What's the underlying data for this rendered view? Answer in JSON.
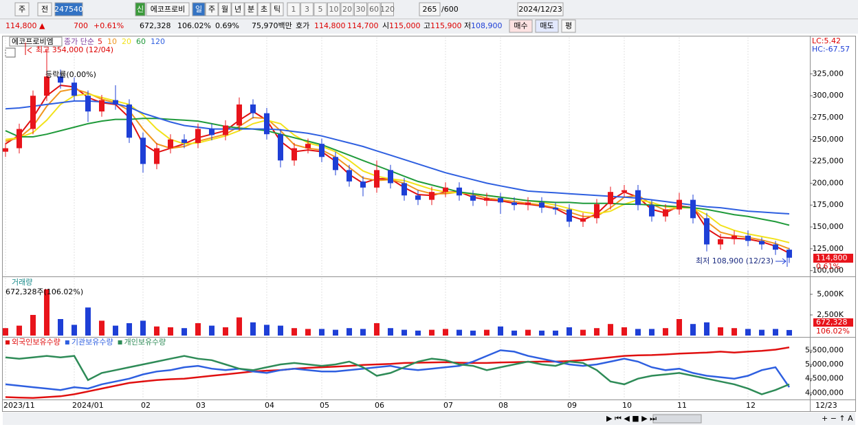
{
  "toolbar": {
    "period": "주",
    "compare": "전",
    "code": "247540",
    "badge": "신",
    "name": "에코프로비",
    "intervals": [
      "일",
      "주",
      "월",
      "년",
      "분",
      "초",
      "틱"
    ],
    "selected": 0,
    "minutes": [
      "1",
      "3",
      "5",
      "10",
      "20",
      "30",
      "60",
      "120"
    ],
    "count": "265",
    "max_count": "/600",
    "date": "2024/12/23"
  },
  "quote": {
    "price": "114,800 ▲",
    "change": "700",
    "change_rate": "+0.61%",
    "volume": "672,328",
    "volume_rate": "106.02%",
    "turnover": "0.69%",
    "amount": "75,970백만",
    "bid_ask_label": "호가",
    "ask": "114,800",
    "bid": "114,700",
    "open_label": "시",
    "open": "115,000",
    "high_label": "고",
    "high": "115,900",
    "low_label": "저",
    "low": "108,900",
    "buy": "매수",
    "sell": "매도",
    "avg": "평"
  },
  "chart_data": [
    {
      "type": "candlestick",
      "title": "에코프로비엠",
      "ma_label": "종가 단순",
      "categories": [
        "2023/11",
        null,
        null,
        null,
        null,
        "2024/01",
        null,
        null,
        null,
        null,
        "02",
        null,
        null,
        null,
        "03",
        null,
        null,
        null,
        null,
        "04",
        null,
        null,
        null,
        "05",
        null,
        null,
        null,
        "06",
        null,
        null,
        null,
        null,
        "07",
        null,
        null,
        null,
        "08",
        null,
        null,
        null,
        null,
        "09",
        null,
        null,
        null,
        "10",
        null,
        null,
        null,
        "11",
        null,
        null,
        null,
        null,
        "12",
        null,
        null,
        null
      ],
      "open": [
        236000,
        240000,
        262000,
        300000,
        322000,
        315000,
        300000,
        282000,
        295000,
        290000,
        252000,
        222000,
        240000,
        250000,
        246000,
        262000,
        255000,
        266000,
        290000,
        280000,
        256000,
        226000,
        240000,
        245000,
        230000,
        215000,
        202000,
        195000,
        215000,
        200000,
        186000,
        181000,
        190000,
        195000,
        186000,
        180000,
        183000,
        178000,
        175000,
        178000,
        172000,
        170000,
        156000,
        160000,
        176000,
        190000,
        192000,
        175000,
        162000,
        170000,
        181000,
        160000,
        130000,
        136000,
        140000,
        134000,
        130000,
        124000
      ],
      "high": [
        246000,
        268000,
        306000,
        354000,
        330000,
        321000,
        306000,
        301000,
        312000,
        296000,
        258000,
        246000,
        256000,
        256000,
        268000,
        268000,
        272000,
        298000,
        296000,
        286000,
        262000,
        246000,
        251000,
        251000,
        236000,
        221000,
        208000,
        226000,
        221000,
        206000,
        192000,
        196000,
        201000,
        201000,
        192000,
        189000,
        189000,
        184000,
        184000,
        184000,
        178000,
        176000,
        166000,
        182000,
        196000,
        198000,
        198000,
        181000,
        176000,
        189000,
        187000,
        166000,
        142000,
        146000,
        146000,
        138000,
        134000,
        126000
      ],
      "low": [
        230000,
        234000,
        256000,
        294000,
        308000,
        294000,
        270000,
        276000,
        284000,
        246000,
        212000,
        216000,
        234000,
        240000,
        240000,
        249000,
        249000,
        260000,
        274000,
        250000,
        218000,
        220000,
        234000,
        224000,
        209000,
        196000,
        185000,
        189000,
        194000,
        180000,
        175000,
        175000,
        184000,
        180000,
        174000,
        174000,
        165000,
        169000,
        169000,
        166000,
        164000,
        150000,
        150000,
        154000,
        170000,
        184000,
        169000,
        156000,
        156000,
        164000,
        154000,
        122000,
        124000,
        130000,
        128000,
        124000,
        118000,
        108900
      ],
      "close": [
        240000,
        262000,
        300000,
        322000,
        315000,
        300000,
        282000,
        295000,
        290000,
        252000,
        222000,
        240000,
        250000,
        246000,
        262000,
        255000,
        266000,
        290000,
        280000,
        256000,
        226000,
        240000,
        245000,
        230000,
        215000,
        202000,
        195000,
        215000,
        200000,
        186000,
        181000,
        190000,
        195000,
        186000,
        180000,
        183000,
        178000,
        175000,
        178000,
        172000,
        170000,
        156000,
        160000,
        176000,
        190000,
        192000,
        175000,
        162000,
        170000,
        181000,
        160000,
        130000,
        136000,
        140000,
        134000,
        130000,
        124000,
        114800
      ],
      "up_color": "#e8141b",
      "down_color": "#1e3fd6",
      "series": [
        {
          "name": "5",
          "color": "#e01010",
          "values": [
            245000,
            255000,
            275000,
            300000,
            312000,
            310000,
            298000,
            292000,
            290000,
            275000,
            245000,
            235000,
            240000,
            245000,
            252000,
            256000,
            260000,
            272000,
            282000,
            272000,
            248000,
            236000,
            238000,
            236000,
            225000,
            210000,
            200000,
            205000,
            205000,
            195000,
            187000,
            186000,
            190000,
            190000,
            184000,
            181000,
            180000,
            177000,
            176000,
            174000,
            171000,
            163000,
            158000,
            165000,
            180000,
            190000,
            184000,
            170000,
            166000,
            174000,
            172000,
            148000,
            138000,
            137000,
            136000,
            133000,
            128000,
            120000
          ]
        },
        {
          "name": "10",
          "color": "#f0961e",
          "values": [
            248000,
            252000,
            265000,
            288000,
            305000,
            308000,
            303000,
            296000,
            292000,
            283000,
            262000,
            245000,
            240000,
            242000,
            248000,
            252000,
            256000,
            265000,
            275000,
            274000,
            260000,
            244000,
            240000,
            238000,
            230000,
            218000,
            206000,
            203000,
            204000,
            200000,
            192000,
            188000,
            188000,
            190000,
            187000,
            183000,
            181000,
            179000,
            177000,
            175000,
            172000,
            167000,
            162000,
            162000,
            172000,
            184000,
            186000,
            176000,
            169000,
            172000,
            172000,
            156000,
            144000,
            140000,
            138000,
            135000,
            131000,
            125000
          ]
        },
        {
          "name": "20",
          "color": "#f2e21a",
          "values": [
            250000,
            252000,
            258000,
            272000,
            290000,
            300000,
            302000,
            298000,
            294000,
            290000,
            278000,
            262000,
            250000,
            245000,
            246000,
            250000,
            254000,
            260000,
            268000,
            272000,
            268000,
            255000,
            246000,
            242000,
            236000,
            226000,
            214000,
            208000,
            205000,
            203000,
            198000,
            193000,
            190000,
            189000,
            188000,
            186000,
            184000,
            182000,
            180000,
            178000,
            175000,
            171000,
            167000,
            165000,
            168000,
            176000,
            181000,
            178000,
            173000,
            172000,
            172000,
            164000,
            152000,
            146000,
            142000,
            139000,
            136000,
            132000
          ]
        },
        {
          "name": "60",
          "color": "#1f9a3a",
          "values": [
            260000,
            253000,
            253000,
            256000,
            260000,
            264000,
            268000,
            271000,
            273000,
            273000,
            274000,
            274000,
            273000,
            272000,
            271000,
            268000,
            265000,
            263000,
            262000,
            260000,
            256000,
            252000,
            248000,
            244000,
            238000,
            232000,
            226000,
            220000,
            214000,
            208000,
            202000,
            198000,
            194000,
            190000,
            188000,
            186000,
            184000,
            182000,
            180000,
            179000,
            178000,
            178000,
            177000,
            177000,
            177000,
            176000,
            176000,
            175000,
            174000,
            173000,
            172000,
            170000,
            167000,
            164000,
            162000,
            159000,
            156000,
            152000
          ]
        },
        {
          "name": "120",
          "color": "#2e5fe0",
          "values": [
            285000,
            286000,
            288000,
            290000,
            292000,
            294000,
            294000,
            293000,
            291000,
            287000,
            280000,
            275000,
            270000,
            266000,
            264000,
            262000,
            262000,
            262000,
            262000,
            262000,
            261000,
            259000,
            257000,
            254000,
            250000,
            246000,
            242000,
            237000,
            232000,
            227000,
            222000,
            217000,
            212000,
            208000,
            204000,
            200000,
            197000,
            194000,
            191000,
            190000,
            189000,
            188000,
            187000,
            186000,
            185000,
            184000,
            183000,
            181000,
            179000,
            177000,
            175000,
            173000,
            172000,
            170000,
            168000,
            167000,
            166000,
            165000
          ]
        }
      ],
      "ylim": [
        95000,
        367000
      ],
      "yticks": [
        {
          "value": 100000,
          "label": "100,000"
        },
        {
          "value": 125000,
          "label": "125,000"
        },
        {
          "value": 150000,
          "label": "150,000"
        },
        {
          "value": 175000,
          "label": "175,000"
        },
        {
          "value": 200000,
          "label": "200,000"
        },
        {
          "value": 225000,
          "label": "225,000"
        },
        {
          "value": 250000,
          "label": "250,000"
        },
        {
          "value": 275000,
          "label": "275,000"
        },
        {
          "value": 300000,
          "label": "300,000"
        },
        {
          "value": 325000,
          "label": "325,000"
        }
      ],
      "annotations": {
        "high": "최고 354,000 (12/04)",
        "low": "최저 108,900 (12/23)",
        "rate": "등락률(0.00%)",
        "lc": "LC:5.42",
        "hc": "HC:-67.57",
        "last_price": "114,800",
        "last_rate": "0.61%"
      },
      "end_label": "12/23"
    },
    {
      "type": "bar",
      "title": "거래량",
      "subtitle": "672,328주(106.02%)",
      "values": [
        900000,
        1200000,
        2500000,
        5600000,
        2000000,
        1300000,
        3400000,
        1800000,
        1200000,
        1500000,
        1800000,
        1100000,
        1000000,
        900000,
        1500000,
        1200000,
        1000000,
        2200000,
        1600000,
        1300000,
        1200000,
        900000,
        800000,
        800000,
        700000,
        900000,
        800000,
        1500000,
        900000,
        700000,
        600000,
        700000,
        800000,
        700000,
        600000,
        700000,
        1100000,
        600000,
        700000,
        600000,
        600000,
        1000000,
        700000,
        900000,
        1400000,
        1000000,
        800000,
        800000,
        900000,
        2000000,
        1400000,
        1600000,
        1000000,
        900000,
        800000,
        700000,
        800000,
        672328
      ],
      "ylim": [
        0,
        7000000
      ],
      "yticks": [
        {
          "value": 2500000,
          "label": "2,500K"
        },
        {
          "value": 5000000,
          "label": "5,000K"
        }
      ],
      "annotations": {
        "last_volume": "672,328",
        "last_rate": "106.02%"
      }
    },
    {
      "type": "line",
      "series": [
        {
          "name": "외국인보유수량",
          "color": "#e01010",
          "values": [
            3850000,
            3830000,
            3820000,
            3850000,
            3880000,
            3950000,
            4050000,
            4150000,
            4250000,
            4350000,
            4400000,
            4450000,
            4480000,
            4500000,
            4550000,
            4600000,
            4650000,
            4700000,
            4750000,
            4780000,
            4800000,
            4850000,
            4880000,
            4900000,
            4920000,
            4950000,
            4980000,
            5000000,
            5020000,
            5050000,
            5060000,
            5070000,
            5080000,
            5060000,
            5050000,
            5050000,
            5070000,
            5080000,
            5090000,
            5100000,
            5100000,
            5120000,
            5150000,
            5200000,
            5250000,
            5300000,
            5320000,
            5330000,
            5350000,
            5380000,
            5400000,
            5420000,
            5450000,
            5420000,
            5450000,
            5480000,
            5520000,
            5600000
          ]
        },
        {
          "name": "기관보유수량",
          "color": "#2e5fe0",
          "values": [
            4300000,
            4250000,
            4200000,
            4150000,
            4100000,
            4200000,
            4150000,
            4300000,
            4400000,
            4500000,
            4650000,
            4750000,
            4800000,
            4900000,
            4950000,
            4850000,
            4800000,
            4850000,
            4750000,
            4700000,
            4800000,
            4850000,
            4800000,
            4750000,
            4750000,
            4800000,
            4850000,
            4900000,
            4950000,
            4850000,
            4800000,
            4850000,
            4900000,
            4950000,
            5100000,
            5300000,
            5500000,
            5450000,
            5300000,
            5200000,
            5100000,
            5000000,
            4950000,
            5000000,
            5100000,
            5200000,
            5100000,
            4900000,
            4800000,
            4850000,
            4700000,
            4600000,
            4550000,
            4500000,
            4600000,
            4800000,
            4900000,
            4200000
          ]
        },
        {
          "name": "개인보유수량",
          "color": "#2e8b57",
          "values": [
            5250000,
            5200000,
            5250000,
            5300000,
            5250000,
            5300000,
            4450000,
            4700000,
            4800000,
            4900000,
            5000000,
            5100000,
            5200000,
            5300000,
            5200000,
            5150000,
            5000000,
            4850000,
            4800000,
            4900000,
            5000000,
            5050000,
            5000000,
            4950000,
            5000000,
            5100000,
            4900000,
            4600000,
            4700000,
            4900000,
            5100000,
            5200000,
            5150000,
            5000000,
            4950000,
            4800000,
            4900000,
            5000000,
            5100000,
            5000000,
            4950000,
            5100000,
            5050000,
            4800000,
            4400000,
            4300000,
            4500000,
            4600000,
            4650000,
            4700000,
            4600000,
            4500000,
            4400000,
            4300000,
            4150000,
            3950000,
            4100000,
            4300000
          ]
        }
      ],
      "ylim": [
        3790000,
        5920000
      ],
      "yticks": [
        {
          "value": 4000000,
          "label": "4,000,000"
        },
        {
          "value": 4500000,
          "label": "4,500,000"
        },
        {
          "value": 5000000,
          "label": "5,000,000"
        },
        {
          "value": 5500000,
          "label": "5,500,000"
        }
      ]
    }
  ]
}
